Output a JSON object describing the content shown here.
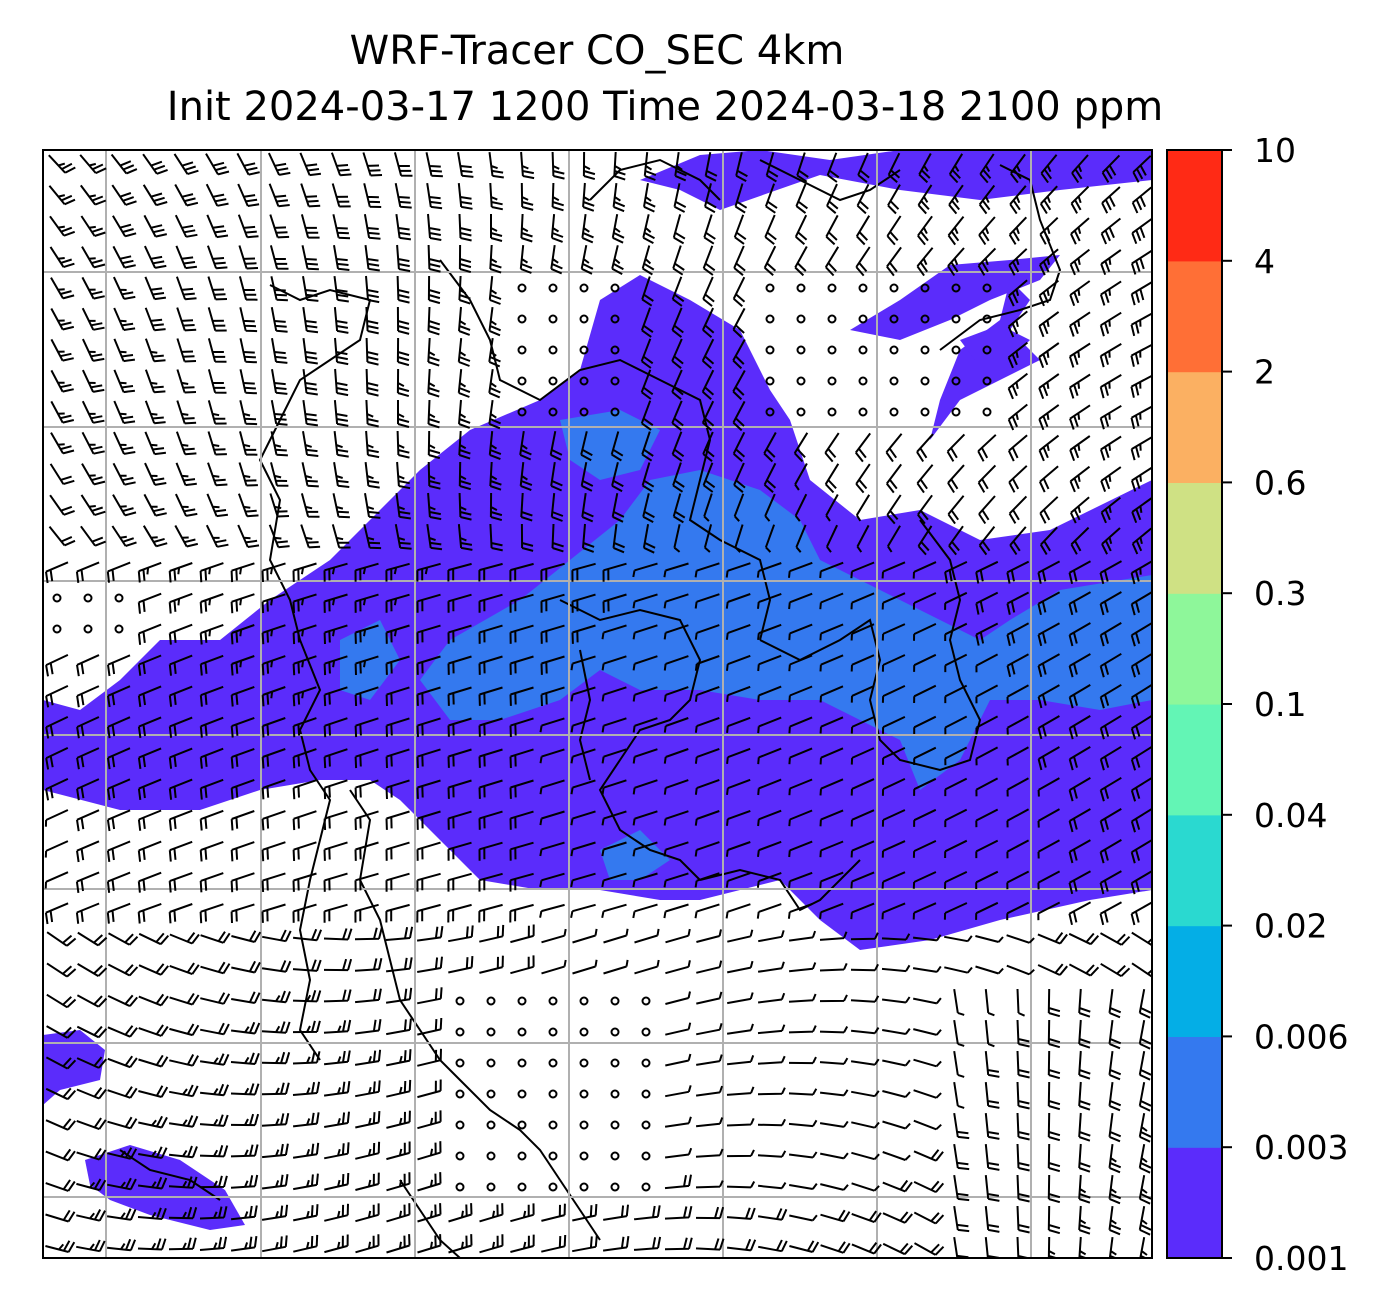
{
  "chart_data": {
    "type": "heatmap",
    "title_line1": "WRF-Tracer CO_SEC 4km",
    "title_line2": "Init 2024-03-17 1200 Time 2024-03-18 2100 ppm",
    "colorbar": {
      "boundaries": [
        "0.001",
        "0.003",
        "0.006",
        "0.02",
        "0.04",
        "0.1",
        "0.3",
        "0.6",
        "2",
        "4",
        "10"
      ],
      "colors": [
        "#5b2cfb",
        "#3479ef",
        "#04aee6",
        "#2ad9d0",
        "#63f5b5",
        "#8ef79a",
        "#cfe184",
        "#fbb062",
        "#ff6f36",
        "#ff2a15"
      ]
    },
    "field_levels_present": [
      "0.001",
      "0.003"
    ],
    "wind_barbs": true,
    "coastlines": true,
    "gridlines": true,
    "colors": {
      "low": "#5b2cfb",
      "mid": "#3479ef",
      "grid": "#b0b0b0"
    }
  }
}
